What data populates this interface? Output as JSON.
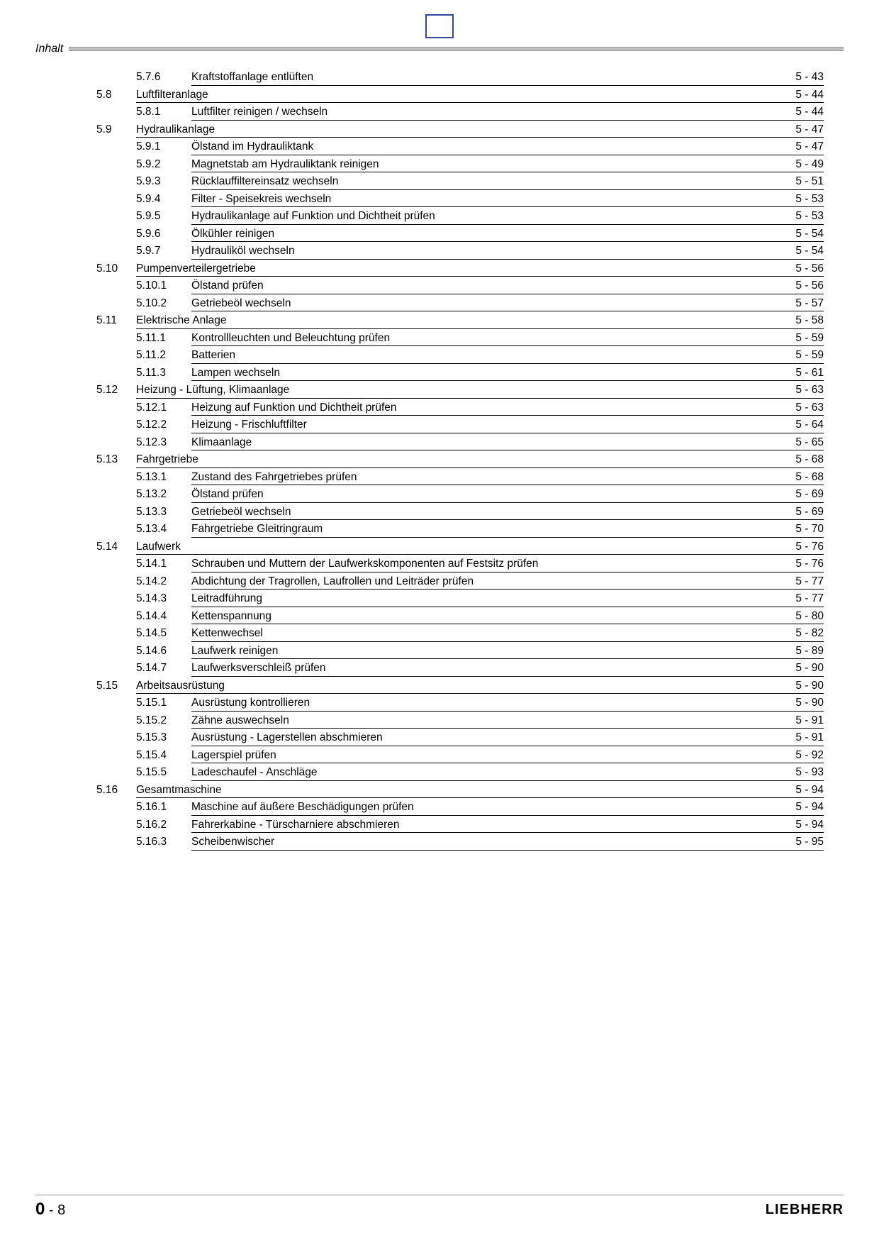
{
  "header_label": "Inhalt",
  "footer": {
    "page_chapter": "0",
    "page_sep": " - ",
    "page_number": "8",
    "brand": "LIEBHERR"
  },
  "colors": {
    "top_box_border": "#2e4a9e",
    "rule": "#000000",
    "header_rule": "#bfbfbf",
    "text": "#000000",
    "bg": "#ffffff"
  },
  "typography": {
    "body_fontsize_pt": 11.5,
    "header_fontsize_pt": 12,
    "footer_page_fontsize_pt": 18
  },
  "toc": [
    {
      "type": "sub",
      "sec": "",
      "sub": "5.7.6",
      "title": "Kraftstoffanlage entlüften",
      "page": "5 - 43"
    },
    {
      "type": "section",
      "sec": "5.8",
      "sub": "",
      "title": "Luftfilteranlage",
      "page": "5 - 44"
    },
    {
      "type": "sub",
      "sec": "",
      "sub": "5.8.1",
      "title": "Luftfilter reinigen / wechseln",
      "page": "5 - 44"
    },
    {
      "type": "section",
      "sec": "5.9",
      "sub": "",
      "title": "Hydraulikanlage",
      "page": "5 - 47"
    },
    {
      "type": "sub",
      "sec": "",
      "sub": "5.9.1",
      "title": "Ölstand im Hydrauliktank",
      "page": "5 - 47"
    },
    {
      "type": "sub",
      "sec": "",
      "sub": "5.9.2",
      "title": "Magnetstab am Hydrauliktank reinigen",
      "page": "5 - 49"
    },
    {
      "type": "sub",
      "sec": "",
      "sub": "5.9.3",
      "title": "Rücklauffiltereinsatz wechseln",
      "page": "5 - 51"
    },
    {
      "type": "sub",
      "sec": "",
      "sub": "5.9.4",
      "title": "Filter - Speisekreis wechseln",
      "page": "5 - 53"
    },
    {
      "type": "sub",
      "sec": "",
      "sub": "5.9.5",
      "title": "Hydraulikanlage auf Funktion und Dichtheit prüfen",
      "page": "5 - 53"
    },
    {
      "type": "sub",
      "sec": "",
      "sub": "5.9.6",
      "title": "Ölkühler reinigen",
      "page": "5 - 54"
    },
    {
      "type": "sub",
      "sec": "",
      "sub": "5.9.7",
      "title": "Hydrauliköl wechseln",
      "page": "5 - 54"
    },
    {
      "type": "section",
      "sec": "5.10",
      "sub": "",
      "title": "Pumpenverteilergetriebe",
      "page": "5 - 56"
    },
    {
      "type": "sub",
      "sec": "",
      "sub": "5.10.1",
      "title": "Ölstand prüfen",
      "page": "5 - 56"
    },
    {
      "type": "sub",
      "sec": "",
      "sub": "5.10.2",
      "title": "Getriebeöl wechseln",
      "page": "5 - 57"
    },
    {
      "type": "section",
      "sec": "5.11",
      "sub": "",
      "title": "Elektrische Anlage",
      "page": "5 - 58"
    },
    {
      "type": "sub",
      "sec": "",
      "sub": "5.11.1",
      "title": "Kontrollleuchten und Beleuchtung prüfen",
      "page": "5 - 59"
    },
    {
      "type": "sub",
      "sec": "",
      "sub": "5.11.2",
      "title": "Batterien",
      "page": "5 - 59"
    },
    {
      "type": "sub",
      "sec": "",
      "sub": "5.11.3",
      "title": "Lampen wechseln",
      "page": "5 - 61"
    },
    {
      "type": "section",
      "sec": "5.12",
      "sub": "",
      "title": "Heizung - Lüftung, Klimaanlage",
      "page": "5 - 63"
    },
    {
      "type": "sub",
      "sec": "",
      "sub": "5.12.1",
      "title": "Heizung auf Funktion und Dichtheit prüfen",
      "page": "5 - 63"
    },
    {
      "type": "sub",
      "sec": "",
      "sub": "5.12.2",
      "title": "Heizung - Frischluftfilter",
      "page": "5 - 64"
    },
    {
      "type": "sub",
      "sec": "",
      "sub": "5.12.3",
      "title": "Klimaanlage",
      "page": "5 - 65"
    },
    {
      "type": "section",
      "sec": "5.13",
      "sub": "",
      "title": "Fahrgetriebe",
      "page": "5 - 68"
    },
    {
      "type": "sub",
      "sec": "",
      "sub": "5.13.1",
      "title": "Zustand des Fahrgetriebes prüfen",
      "page": "5 - 68"
    },
    {
      "type": "sub",
      "sec": "",
      "sub": "5.13.2",
      "title": "Ölstand prüfen",
      "page": "5 - 69"
    },
    {
      "type": "sub",
      "sec": "",
      "sub": "5.13.3",
      "title": "Getriebeöl wechseln",
      "page": "5 - 69"
    },
    {
      "type": "sub",
      "sec": "",
      "sub": "5.13.4",
      "title": "Fahrgetriebe Gleitringraum",
      "page": "5 - 70"
    },
    {
      "type": "section",
      "sec": "5.14",
      "sub": "",
      "title": "Laufwerk",
      "page": "5 - 76"
    },
    {
      "type": "sub",
      "sec": "",
      "sub": "5.14.1",
      "title": "Schrauben und Muttern der Laufwerkskomponenten auf Festsitz prüfen",
      "page": "5 - 76"
    },
    {
      "type": "sub",
      "sec": "",
      "sub": "5.14.2",
      "title": "Abdichtung der Tragrollen, Laufrollen und Leiträder prüfen",
      "page": "5 - 77"
    },
    {
      "type": "sub",
      "sec": "",
      "sub": "5.14.3",
      "title": "Leitradführung",
      "page": "5 - 77"
    },
    {
      "type": "sub",
      "sec": "",
      "sub": "5.14.4",
      "title": "Kettenspannung",
      "page": "5 - 80"
    },
    {
      "type": "sub",
      "sec": "",
      "sub": "5.14.5",
      "title": "Kettenwechsel",
      "page": "5 - 82"
    },
    {
      "type": "sub",
      "sec": "",
      "sub": "5.14.6",
      "title": "Laufwerk reinigen",
      "page": "5 - 89"
    },
    {
      "type": "sub",
      "sec": "",
      "sub": "5.14.7",
      "title": "Laufwerksverschleiß prüfen",
      "page": "5 - 90"
    },
    {
      "type": "section",
      "sec": "5.15",
      "sub": "",
      "title": "Arbeitsausrüstung",
      "page": "5 - 90"
    },
    {
      "type": "sub",
      "sec": "",
      "sub": "5.15.1",
      "title": "Ausrüstung kontrollieren",
      "page": "5 - 90"
    },
    {
      "type": "sub",
      "sec": "",
      "sub": "5.15.2",
      "title": "Zähne auswechseln",
      "page": "5 - 91"
    },
    {
      "type": "sub",
      "sec": "",
      "sub": "5.15.3",
      "title": "Ausrüstung - Lagerstellen abschmieren",
      "page": "5 - 91"
    },
    {
      "type": "sub",
      "sec": "",
      "sub": "5.15.4",
      "title": "Lagerspiel prüfen",
      "page": "5 - 92"
    },
    {
      "type": "sub",
      "sec": "",
      "sub": "5.15.5",
      "title": "Ladeschaufel - Anschläge",
      "page": "5 - 93"
    },
    {
      "type": "section",
      "sec": "5.16",
      "sub": "",
      "title": "Gesamtmaschine",
      "page": "5 - 94"
    },
    {
      "type": "sub",
      "sec": "",
      "sub": "5.16.1",
      "title": "Maschine auf äußere Beschädigungen prüfen",
      "page": "5 - 94"
    },
    {
      "type": "sub",
      "sec": "",
      "sub": "5.16.2",
      "title": "Fahrerkabine - Türscharniere abschmieren",
      "page": "5 - 94"
    },
    {
      "type": "sub",
      "sec": "",
      "sub": "5.16.3",
      "title": "Scheibenwischer",
      "page": "5 - 95"
    }
  ]
}
